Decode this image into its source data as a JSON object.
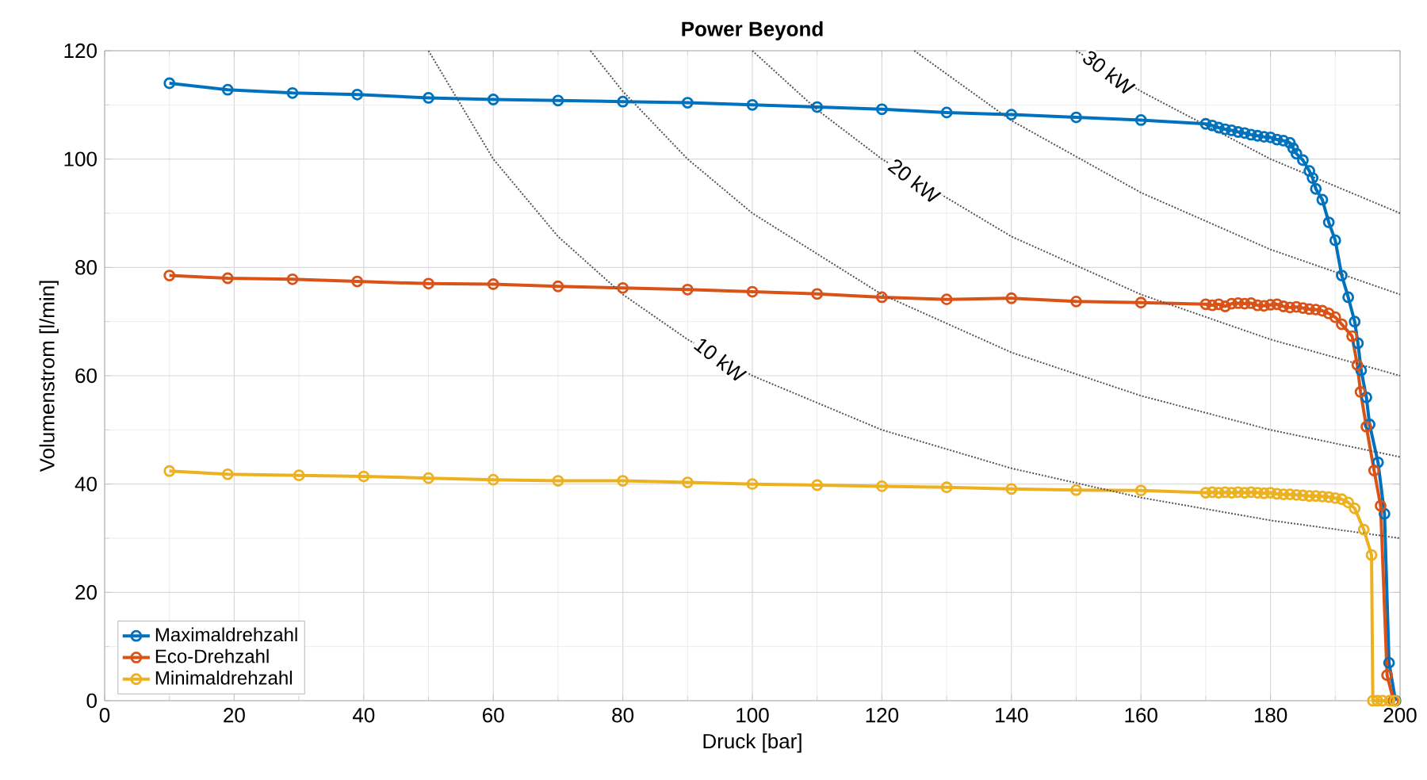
{
  "chart_data": {
    "type": "line",
    "title": "Power Beyond",
    "xlabel": "Druck [bar]",
    "ylabel": "Volumenstrom [l/min]",
    "xlim": [
      0,
      200
    ],
    "ylim": [
      0,
      120
    ],
    "xticks": [
      0,
      20,
      40,
      60,
      80,
      100,
      120,
      140,
      160,
      180,
      200
    ],
    "yticks": [
      0,
      20,
      40,
      60,
      80,
      100,
      120
    ],
    "grid": true,
    "legend": "bottom left",
    "marker": "circle",
    "line_style": "solid",
    "series": [
      {
        "name": "Maximaldrehzahl",
        "color": "#0072bd",
        "x": [
          10,
          19,
          29,
          39,
          50,
          60,
          70,
          80,
          90,
          100,
          110,
          120,
          130,
          140,
          150,
          160,
          170,
          171,
          172,
          173,
          174,
          175,
          176,
          177,
          178,
          179,
          180,
          181,
          182,
          183,
          183.5,
          184,
          185,
          186,
          186.5,
          187,
          188,
          189,
          190,
          191,
          192,
          193,
          193.5,
          194,
          194.8,
          195.3,
          196.6,
          197.6,
          198.3,
          199.3
        ],
        "values": [
          114,
          112.8,
          112.2,
          111.9,
          111.3,
          111,
          110.8,
          110.6,
          110.4,
          110,
          109.6,
          109.2,
          108.6,
          108.2,
          107.7,
          107.2,
          106.5,
          106.2,
          105.8,
          105.5,
          105.3,
          105,
          104.8,
          104.5,
          104.3,
          104.1,
          104,
          103.6,
          103.4,
          103,
          102,
          101,
          99.8,
          97.8,
          96.5,
          94.5,
          92.5,
          88.3,
          85,
          78.5,
          74.5,
          70,
          66,
          61,
          56,
          51,
          44,
          34.5,
          7,
          0
        ]
      },
      {
        "name": "Eco-Drehzahl",
        "color": "#d95319",
        "x": [
          10,
          19,
          29,
          39,
          50,
          60,
          70,
          80,
          90,
          100,
          110,
          120,
          130,
          140,
          150,
          160,
          170,
          171,
          172,
          173,
          174,
          175,
          176,
          177,
          178,
          179,
          180,
          181,
          182,
          183,
          184,
          185,
          186,
          187,
          188,
          189,
          190,
          191,
          192.6,
          193.4,
          193.9,
          194.8,
          196,
          197,
          198,
          199
        ],
        "values": [
          78.5,
          78,
          77.8,
          77.4,
          77,
          76.9,
          76.5,
          76.2,
          75.9,
          75.5,
          75.1,
          74.5,
          74.1,
          74.3,
          73.7,
          73.5,
          73.2,
          73,
          73.2,
          72.8,
          73.3,
          73.4,
          73.3,
          73.4,
          73,
          72.9,
          73.1,
          73.2,
          72.8,
          72.6,
          72.7,
          72.5,
          72.3,
          72.2,
          72,
          71.5,
          70.8,
          69.5,
          67.3,
          62,
          57,
          50.6,
          42.5,
          36,
          4.7,
          0
        ]
      },
      {
        "name": "Minimaldrehzahl",
        "color": "#edb120",
        "x": [
          10,
          19,
          30,
          40,
          50,
          60,
          70,
          80,
          90,
          100,
          110,
          120,
          130,
          140,
          150,
          160,
          170,
          171,
          172,
          173,
          174,
          175,
          176,
          177,
          178,
          179,
          180,
          181,
          182,
          183,
          184,
          185,
          186,
          187,
          188,
          189,
          190,
          191,
          192,
          193,
          194.4,
          195.6,
          195.8,
          196.5,
          197.3,
          198.4,
          199.2
        ],
        "values": [
          42.4,
          41.8,
          41.6,
          41.4,
          41.1,
          40.8,
          40.6,
          40.6,
          40.3,
          40,
          39.8,
          39.6,
          39.4,
          39.1,
          38.9,
          38.8,
          38.4,
          38.5,
          38.4,
          38.5,
          38.4,
          38.5,
          38.4,
          38.5,
          38.4,
          38.3,
          38.4,
          38.2,
          38.1,
          38.1,
          38,
          37.9,
          37.8,
          37.8,
          37.7,
          37.6,
          37.4,
          37.2,
          36.6,
          35.5,
          31.6,
          26.9,
          0,
          0,
          0,
          0,
          0
        ]
      },
      {
        "color": "#555555",
        "marker": "none",
        "line_style": "dotted",
        "x": [
          50,
          60,
          70,
          80,
          90,
          100,
          120,
          140,
          160,
          180,
          200
        ],
        "values": [
          120,
          100,
          85.7,
          75,
          66.7,
          60,
          50,
          42.9,
          37.5,
          33.3,
          30
        ]
      },
      {
        "color": "#555555",
        "marker": "none",
        "line_style": "dotted",
        "x": [
          75,
          80,
          90,
          100,
          120,
          140,
          160,
          180,
          200
        ],
        "values": [
          120,
          112.5,
          100,
          90,
          75,
          64.3,
          56.3,
          50,
          45
        ]
      },
      {
        "color": "#555555",
        "marker": "none",
        "line_style": "dotted",
        "x": [
          100,
          110,
          120,
          140,
          160,
          180,
          200
        ],
        "values": [
          120,
          109.1,
          100,
          85.7,
          75,
          66.7,
          60
        ]
      },
      {
        "color": "#555555",
        "marker": "none",
        "line_style": "dotted",
        "x": [
          125,
          140,
          160,
          180,
          200
        ],
        "values": [
          120,
          107.1,
          93.8,
          83.3,
          75
        ]
      },
      {
        "color": "#555555",
        "marker": "none",
        "line_style": "dotted",
        "x": [
          150,
          160,
          180,
          200
        ],
        "values": [
          120,
          112.5,
          100,
          90
        ]
      }
    ],
    "annotations": [
      {
        "text": "10 kW",
        "x": 95,
        "y": 63
      },
      {
        "text": "20 kW",
        "x": 125,
        "y": 96
      },
      {
        "text": "30 kW",
        "x": 155,
        "y": 116
      }
    ]
  }
}
